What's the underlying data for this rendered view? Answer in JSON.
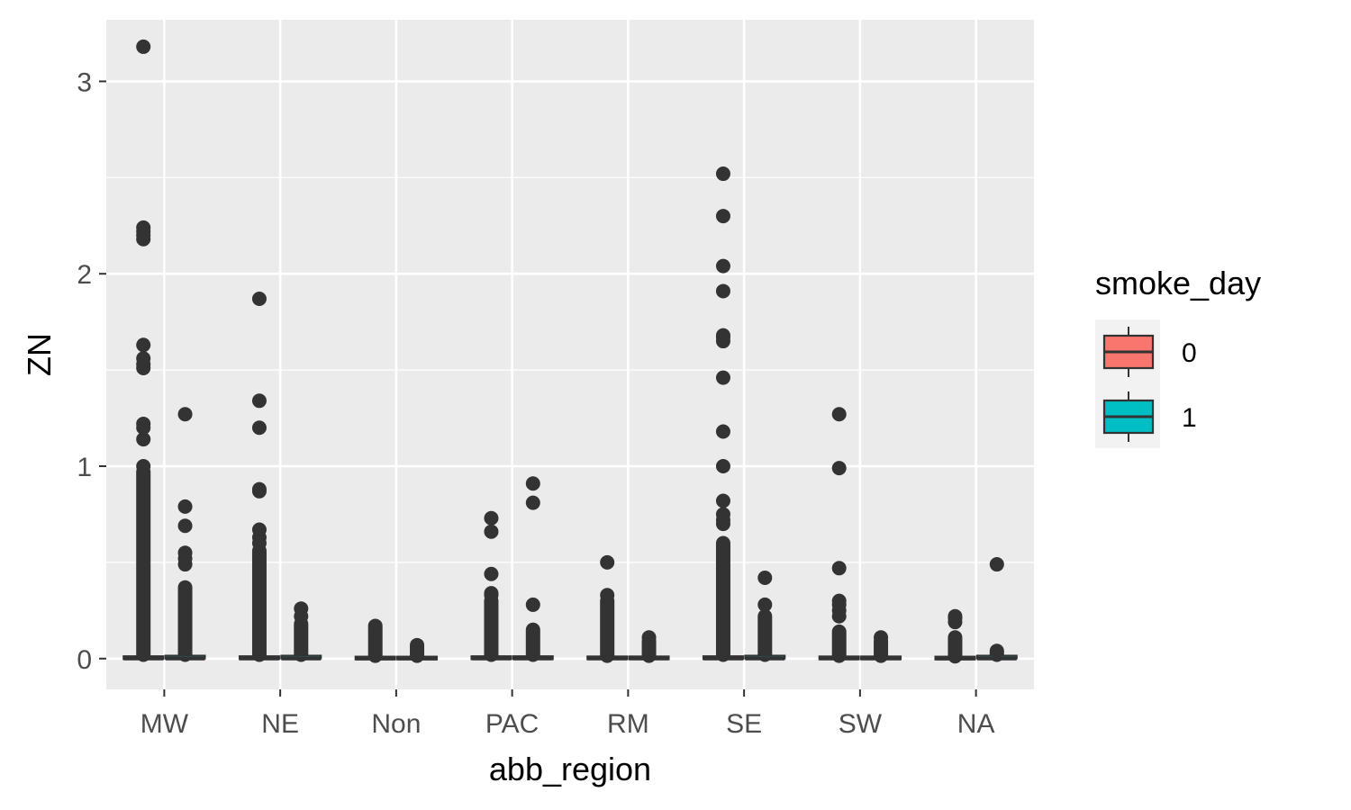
{
  "chart_data": {
    "type": "boxplot",
    "xlabel": "abb_region",
    "ylabel": "ZN",
    "categories": [
      "MW",
      "NE",
      "Non",
      "PAC",
      "RM",
      "SE",
      "SW",
      "NA"
    ],
    "ylim": [
      -0.16,
      3.32
    ],
    "y_ticks": [
      0,
      1,
      2,
      3
    ],
    "y_tick_labels": [
      "0",
      "1",
      "2",
      "3"
    ],
    "grid": true,
    "legend": {
      "title": "smoke_day",
      "position": "right",
      "entries": [
        {
          "label": "0",
          "color": "#F8766D"
        },
        {
          "label": "1",
          "color": "#00BFC4"
        }
      ]
    },
    "series": [
      {
        "name": "0",
        "color": "#F8766D",
        "boxes": [
          {
            "q1": 0.0,
            "median": 0.0,
            "q3": 0.005,
            "whisker_low": 0.0,
            "whisker_high": 0.012,
            "outlier_band": [
              0.02,
              0.97
            ],
            "outliers": [
              1.0,
              1.14,
              1.2,
              1.22,
              1.51,
              1.53,
              1.56,
              1.63,
              2.18,
              2.2,
              2.22,
              2.24,
              3.18
            ]
          },
          {
            "q1": 0.0,
            "median": 0.0,
            "q3": 0.005,
            "whisker_low": 0.0,
            "whisker_high": 0.012,
            "outlier_band": [
              0.02,
              0.56
            ],
            "outliers": [
              0.6,
              0.63,
              0.67,
              0.87,
              0.88,
              1.2,
              1.34,
              1.87
            ]
          },
          {
            "q1": 0.0,
            "median": 0.0,
            "q3": 0.003,
            "whisker_low": -0.01,
            "whisker_high": 0.01,
            "outlier_band": [
              0.015,
              0.16
            ],
            "outliers": [
              0.17
            ]
          },
          {
            "q1": 0.0,
            "median": 0.0,
            "q3": 0.005,
            "whisker_low": 0.0,
            "whisker_high": 0.012,
            "outlier_band": [
              0.02,
              0.3
            ],
            "outliers": [
              0.33,
              0.34,
              0.44,
              0.66,
              0.73
            ]
          },
          {
            "q1": 0.0,
            "median": 0.0,
            "q3": 0.004,
            "whisker_low": -0.01,
            "whisker_high": 0.01,
            "outlier_band": [
              0.015,
              0.3
            ],
            "outliers": [
              0.33,
              0.5
            ]
          },
          {
            "q1": 0.0,
            "median": 0.0,
            "q3": 0.005,
            "whisker_low": 0.0,
            "whisker_high": 0.012,
            "outlier_band": [
              0.02,
              0.6
            ],
            "outliers": [
              0.7,
              0.72,
              0.75,
              0.82,
              1.0,
              1.18,
              1.46,
              1.65,
              1.67,
              1.68,
              1.91,
              2.04,
              2.3,
              2.52
            ]
          },
          {
            "q1": 0.0,
            "median": 0.0,
            "q3": 0.004,
            "whisker_low": 0.0,
            "whisker_high": 0.01,
            "outlier_band": [
              0.015,
              0.14
            ],
            "outliers": [
              0.22,
              0.25,
              0.28,
              0.3,
              0.47,
              0.99,
              1.27
            ]
          },
          {
            "q1": 0.0,
            "median": 0.0,
            "q3": 0.003,
            "whisker_low": 0.0,
            "whisker_high": 0.008,
            "outlier_band": [
              0.012,
              0.11
            ],
            "outliers": [
              0.19,
              0.21,
              0.22
            ]
          }
        ]
      },
      {
        "name": "1",
        "color": "#00BFC4",
        "boxes": [
          {
            "q1": 0.0,
            "median": 0.0,
            "q3": 0.008,
            "whisker_low": 0.0,
            "whisker_high": 0.015,
            "outlier_band": [
              0.02,
              0.37
            ],
            "outliers": [
              0.49,
              0.52,
              0.55,
              0.69,
              0.79,
              1.27
            ]
          },
          {
            "q1": 0.0,
            "median": 0.0,
            "q3": 0.008,
            "whisker_low": 0.0,
            "whisker_high": 0.015,
            "outlier_band": [
              0.02,
              0.18
            ],
            "outliers": [
              0.22,
              0.26
            ]
          },
          {
            "q1": 0.0,
            "median": 0.0,
            "q3": 0.003,
            "whisker_low": -0.005,
            "whisker_high": 0.01,
            "outlier_band": [
              0.015,
              0.06
            ],
            "outliers": [
              0.07
            ]
          },
          {
            "q1": 0.0,
            "median": 0.0,
            "q3": 0.005,
            "whisker_low": 0.0,
            "whisker_high": 0.012,
            "outlier_band": [
              0.02,
              0.15
            ],
            "outliers": [
              0.28,
              0.81,
              0.91
            ]
          },
          {
            "q1": 0.0,
            "median": 0.0,
            "q3": 0.004,
            "whisker_low": -0.005,
            "whisker_high": 0.01,
            "outlier_band": [
              0.015,
              0.09
            ],
            "outliers": [
              0.11
            ]
          },
          {
            "q1": 0.0,
            "median": 0.0,
            "q3": 0.008,
            "whisker_low": 0.0,
            "whisker_high": 0.015,
            "outlier_band": [
              0.02,
              0.22
            ],
            "outliers": [
              0.28,
              0.42
            ]
          },
          {
            "q1": 0.0,
            "median": 0.0,
            "q3": 0.004,
            "whisker_low": 0.0,
            "whisker_high": 0.01,
            "outlier_band": [
              0.015,
              0.09
            ],
            "outliers": [
              0.11
            ]
          },
          {
            "q1": 0.0,
            "median": 0.0,
            "q3": 0.008,
            "whisker_low": 0.0,
            "whisker_high": 0.015,
            "outlier_band": [
              0.02,
              0.03
            ],
            "outliers": [
              0.04,
              0.49
            ]
          }
        ]
      }
    ]
  }
}
